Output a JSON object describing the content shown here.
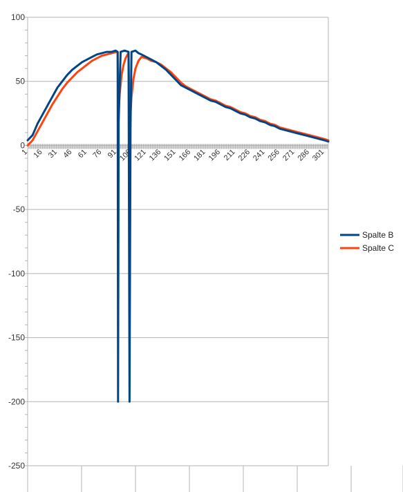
{
  "chart_data": {
    "type": "line",
    "title": "",
    "xlabel": "",
    "ylabel": "",
    "x_range": [
      1,
      305
    ],
    "ylim": [
      -250,
      100
    ],
    "y_ticks": [
      100,
      50,
      0,
      -50,
      -100,
      -150,
      -200,
      -250
    ],
    "x_ticks": [
      1,
      16,
      31,
      46,
      61,
      76,
      91,
      106,
      121,
      136,
      151,
      166,
      181,
      196,
      211,
      226,
      241,
      256,
      271,
      286,
      301
    ],
    "grid": true,
    "legend_position": "right",
    "series": [
      {
        "name": "Spalte B",
        "color": "#004586",
        "points": [
          [
            1,
            4
          ],
          [
            6,
            8
          ],
          [
            11,
            17
          ],
          [
            16,
            24
          ],
          [
            21,
            31
          ],
          [
            26,
            38
          ],
          [
            31,
            45
          ],
          [
            36,
            50
          ],
          [
            41,
            55
          ],
          [
            46,
            59
          ],
          [
            51,
            62
          ],
          [
            56,
            65
          ],
          [
            61,
            67
          ],
          [
            66,
            69
          ],
          [
            71,
            71
          ],
          [
            76,
            72
          ],
          [
            81,
            73
          ],
          [
            86,
            73
          ],
          [
            90,
            74
          ],
          [
            92,
            73
          ],
          [
            92.4,
            -200
          ],
          [
            93,
            18
          ],
          [
            95,
            73
          ],
          [
            99,
            74
          ],
          [
            103,
            73
          ],
          [
            104,
            -200
          ],
          [
            105,
            14
          ],
          [
            106,
            73
          ],
          [
            110,
            74
          ],
          [
            113,
            72
          ],
          [
            116,
            71
          ],
          [
            121,
            69
          ],
          [
            126,
            67
          ],
          [
            131,
            65
          ],
          [
            136,
            62
          ],
          [
            141,
            59
          ],
          [
            146,
            55
          ],
          [
            151,
            51
          ],
          [
            156,
            47
          ],
          [
            161,
            45
          ],
          [
            166,
            43
          ],
          [
            171,
            41
          ],
          [
            176,
            39
          ],
          [
            181,
            37
          ],
          [
            186,
            35
          ],
          [
            191,
            34
          ],
          [
            196,
            32
          ],
          [
            201,
            30
          ],
          [
            206,
            29
          ],
          [
            211,
            27
          ],
          [
            216,
            25
          ],
          [
            221,
            24
          ],
          [
            226,
            22
          ],
          [
            231,
            21
          ],
          [
            236,
            19
          ],
          [
            241,
            18
          ],
          [
            246,
            16
          ],
          [
            251,
            15
          ],
          [
            256,
            13
          ],
          [
            261,
            12
          ],
          [
            266,
            11
          ],
          [
            271,
            10
          ],
          [
            276,
            9
          ],
          [
            281,
            8
          ],
          [
            286,
            7
          ],
          [
            291,
            6
          ],
          [
            296,
            5
          ],
          [
            301,
            4
          ],
          [
            305,
            3
          ]
        ]
      },
      {
        "name": "Spalte C",
        "color": "#ff420e",
        "points": [
          [
            1,
            0
          ],
          [
            6,
            4
          ],
          [
            11,
            11
          ],
          [
            16,
            18
          ],
          [
            21,
            25
          ],
          [
            26,
            32
          ],
          [
            31,
            38
          ],
          [
            36,
            44
          ],
          [
            41,
            49
          ],
          [
            46,
            53
          ],
          [
            51,
            57
          ],
          [
            56,
            60
          ],
          [
            61,
            63
          ],
          [
            66,
            66
          ],
          [
            71,
            68
          ],
          [
            76,
            70
          ],
          [
            81,
            71
          ],
          [
            86,
            72
          ],
          [
            91,
            73
          ],
          [
            92,
            73
          ],
          [
            92.6,
            20
          ],
          [
            94,
            40
          ],
          [
            96,
            55
          ],
          [
            98,
            63
          ],
          [
            100,
            68
          ],
          [
            102,
            71
          ],
          [
            103,
            72
          ],
          [
            104.2,
            14
          ],
          [
            106,
            38
          ],
          [
            108,
            52
          ],
          [
            110,
            60
          ],
          [
            113,
            66
          ],
          [
            116,
            69
          ],
          [
            121,
            68
          ],
          [
            126,
            66
          ],
          [
            131,
            65
          ],
          [
            136,
            63
          ],
          [
            141,
            60
          ],
          [
            146,
            57
          ],
          [
            151,
            53
          ],
          [
            156,
            49
          ],
          [
            161,
            46
          ],
          [
            166,
            44
          ],
          [
            171,
            42
          ],
          [
            176,
            40
          ],
          [
            181,
            38
          ],
          [
            186,
            36
          ],
          [
            191,
            35
          ],
          [
            196,
            33
          ],
          [
            201,
            31
          ],
          [
            206,
            30
          ],
          [
            211,
            28
          ],
          [
            216,
            26
          ],
          [
            221,
            25
          ],
          [
            226,
            23
          ],
          [
            231,
            22
          ],
          [
            236,
            20
          ],
          [
            241,
            19
          ],
          [
            246,
            17
          ],
          [
            251,
            16
          ],
          [
            256,
            14
          ],
          [
            261,
            13
          ],
          [
            266,
            12
          ],
          [
            271,
            11
          ],
          [
            276,
            10
          ],
          [
            281,
            9
          ],
          [
            286,
            8
          ],
          [
            291,
            7
          ],
          [
            296,
            6
          ],
          [
            301,
            5
          ],
          [
            305,
            4
          ]
        ]
      }
    ]
  }
}
